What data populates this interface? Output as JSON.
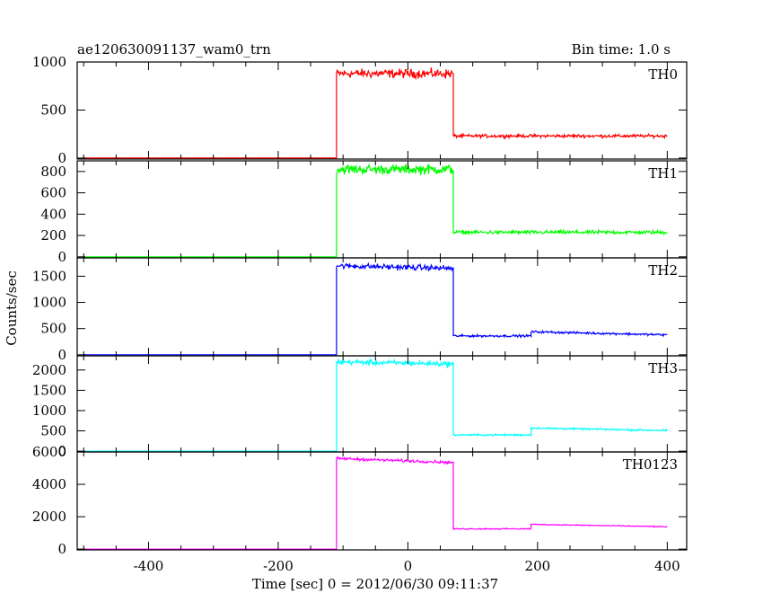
{
  "chart_data": {
    "type": "line",
    "title": "ae120630091137_wam0_trn",
    "subtitle": "Bin time: 1.0 s",
    "xlabel": "Time [sec] 0 = 2012/06/30 09:11:37",
    "ylabel": "Counts/sec",
    "xlim": [
      -510,
      430
    ],
    "xticks": [
      -400,
      -200,
      0,
      200,
      400
    ],
    "grid": false,
    "panels": [
      {
        "name": "TH0",
        "color": "#ff0000",
        "ylim": [
          -10,
          1000
        ],
        "yticks": [
          0,
          500,
          1000
        ],
        "segments": [
          {
            "x": [
              -500,
              -110
            ],
            "level": 0,
            "noise": 0
          },
          {
            "x": [
              -110,
              70
            ],
            "level": 880,
            "noise": 40
          },
          {
            "x": [
              70,
              400
            ],
            "level": 230,
            "noise": 14
          }
        ]
      },
      {
        "name": "TH1",
        "color": "#00ff00",
        "ylim": [
          -10,
          900
        ],
        "yticks": [
          0,
          200,
          400,
          600,
          800
        ],
        "segments": [
          {
            "x": [
              -500,
              -110
            ],
            "level": 0,
            "noise": 0
          },
          {
            "x": [
              -110,
              70
            ],
            "level": 820,
            "noise": 40
          },
          {
            "x": [
              70,
              400
            ],
            "level": 230,
            "noise": 15
          }
        ]
      },
      {
        "name": "TH2",
        "color": "#0000ff",
        "ylim": [
          -20,
          1850
        ],
        "yticks": [
          0,
          500,
          1000,
          1500
        ],
        "segments": [
          {
            "x": [
              -500,
              -110
            ],
            "level": 0,
            "noise": 0
          },
          {
            "x": [
              -110,
              70
            ],
            "level": 1700,
            "noise": 45,
            "end_level": 1650
          },
          {
            "x": [
              70,
              190
            ],
            "level": 360,
            "noise": 18
          },
          {
            "x": [
              190,
              400
            ],
            "level": 440,
            "noise": 18,
            "end_level": 380
          }
        ]
      },
      {
        "name": "TH3",
        "color": "#00ffff",
        "ylim": [
          -20,
          2350
        ],
        "yticks": [
          0,
          500,
          1000,
          1500,
          2000
        ],
        "segments": [
          {
            "x": [
              -500,
              -110
            ],
            "level": 0,
            "noise": 0
          },
          {
            "x": [
              -110,
              70
            ],
            "level": 2200,
            "noise": 55,
            "end_level": 2150
          },
          {
            "x": [
              70,
              190
            ],
            "level": 400,
            "noise": 20
          },
          {
            "x": [
              190,
              400
            ],
            "level": 570,
            "noise": 20,
            "end_level": 510
          }
        ]
      },
      {
        "name": "TH0123",
        "color": "#ff00ff",
        "ylim": [
          -50,
          6000
        ],
        "yticks": [
          0,
          2000,
          4000,
          6000
        ],
        "segments": [
          {
            "x": [
              -500,
              -110
            ],
            "level": 0,
            "noise": 0
          },
          {
            "x": [
              -110,
              70
            ],
            "level": 5600,
            "noise": 70,
            "end_level": 5350
          },
          {
            "x": [
              70,
              190
            ],
            "level": 1250,
            "noise": 30
          },
          {
            "x": [
              190,
              400
            ],
            "level": 1530,
            "noise": 25,
            "end_level": 1380
          }
        ]
      }
    ]
  }
}
